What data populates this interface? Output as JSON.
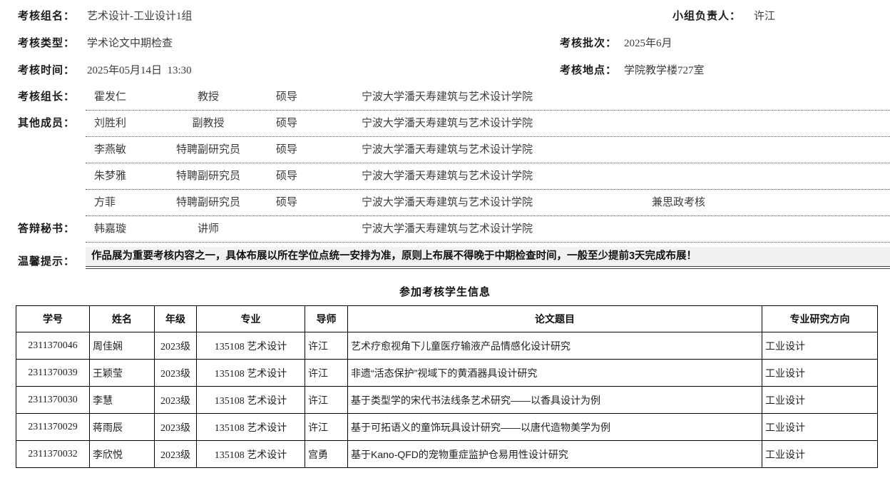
{
  "form": {
    "group_name_label": "考核组名：",
    "group_name": "艺术设计-工业设计1组",
    "leader_label": "小组负责人：",
    "leader": "许江",
    "type_label": "考核类型：",
    "type": "学术论文中期检查",
    "batch_label": "考核批次：",
    "batch": "2025年6月",
    "time_label": "考核时间：",
    "time": "2025年05月14日  13:30",
    "location_label": "考核地点：",
    "location": "学院教学楼727室",
    "chair_label": "考核组长：",
    "other_members_label": "其他成员：",
    "secretary_label": "答辩秘书：",
    "tips_label": "温馨提示：",
    "tips": "作品展为重要考核内容之一，具体布展以所在学位点统一安排为准，原则上布展不得晚于中期检查时间，一般至少提前3天完成布展！"
  },
  "members": [
    {
      "name": "霍发仁",
      "title": "教授",
      "tutor": "硕导",
      "org": "宁波大学潘天寿建筑与艺术设计学院",
      "note": ""
    },
    {
      "name": "刘胜利",
      "title": "副教授",
      "tutor": "硕导",
      "org": "宁波大学潘天寿建筑与艺术设计学院",
      "note": ""
    },
    {
      "name": "李燕敏",
      "title": "特聘副研究员",
      "tutor": "硕导",
      "org": "宁波大学潘天寿建筑与艺术设计学院",
      "note": ""
    },
    {
      "name": "朱梦雅",
      "title": "特聘副研究员",
      "tutor": "硕导",
      "org": "宁波大学潘天寿建筑与艺术设计学院",
      "note": ""
    },
    {
      "name": "方菲",
      "title": "特聘副研究员",
      "tutor": "硕导",
      "org": "宁波大学潘天寿建筑与艺术设计学院",
      "note": "兼思政考核"
    },
    {
      "name": "韩嘉璇",
      "title": "讲师",
      "tutor": "",
      "org": "宁波大学潘天寿建筑与艺术设计学院",
      "note": ""
    }
  ],
  "table": {
    "title": "参加考核学生信息",
    "headers": [
      "学号",
      "姓名",
      "年级",
      "专业",
      "导师",
      "论文题目",
      "专业研究方向"
    ],
    "rows": [
      [
        "2311370046",
        "周佳娴",
        "2023级",
        "135108 艺术设计",
        "许江",
        "艺术疗愈视角下儿童医疗输液产品情感化设计研究",
        "工业设计"
      ],
      [
        "2311370039",
        "王颖莹",
        "2023级",
        "135108 艺术设计",
        "许江",
        "非遗“活态保护”视域下的黄酒器具设计研究",
        "工业设计"
      ],
      [
        "2311370030",
        "李慧",
        "2023级",
        "135108 艺术设计",
        "许江",
        "基于类型学的宋代书法线条艺术研究——以香具设计为例",
        "工业设计"
      ],
      [
        "2311370029",
        "蒋雨辰",
        "2023级",
        "135108 艺术设计",
        "许江",
        "基于可拓语义的童饰玩具设计研究——以唐代造物美学为例",
        "工业设计"
      ],
      [
        "2311370032",
        "李欣悦",
        "2023级",
        "135108 艺术设计",
        "宫勇",
        "基于Kano-QFD的宠物重症监护仓易用性设计研究",
        "工业设计"
      ]
    ]
  },
  "colors": {
    "tips_bg": "#f1f1f1",
    "border": "#000000",
    "text_value": "#3d3d3d"
  }
}
